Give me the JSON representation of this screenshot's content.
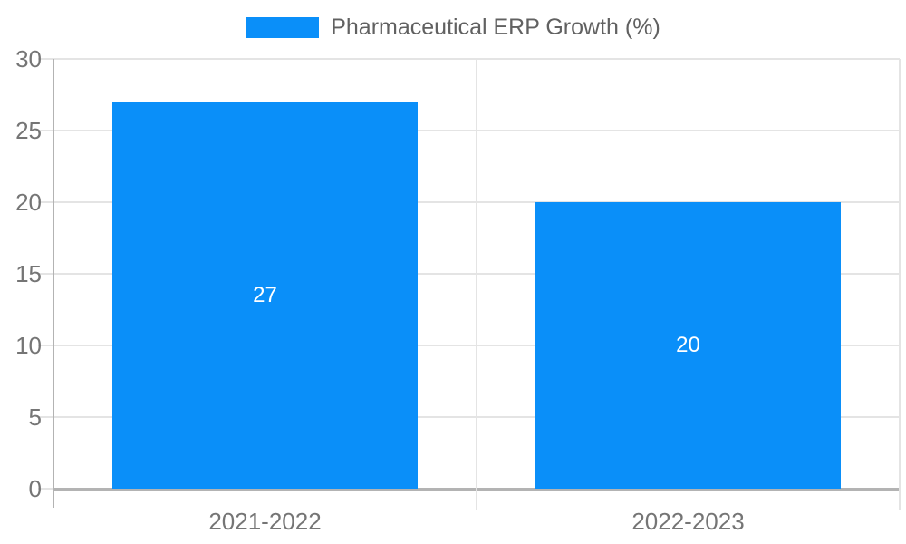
{
  "legend": {
    "label": "Pharmaceutical ERP Growth (%)"
  },
  "chart_data": {
    "type": "bar",
    "title": "",
    "categories": [
      "2021-2022",
      "2022-2023"
    ],
    "series": [
      {
        "name": "Pharmaceutical ERP Growth (%)",
        "values": [
          27,
          20
        ]
      }
    ],
    "value_labels": [
      "27",
      "20"
    ],
    "ylim": [
      0,
      30
    ],
    "ytick_step": 5,
    "ytick_labels": [
      "0",
      "5",
      "10",
      "15",
      "20",
      "25",
      "30"
    ],
    "legend_position": "top",
    "grid": true,
    "colors": {
      "bar": "#0a8ff9",
      "gridline": "#e4e4e4",
      "axis": "#b3b3b3",
      "tick_text": "#757575",
      "legend_text": "#616161",
      "bar_label_text": "#ffffff",
      "background": "#ffffff"
    }
  }
}
